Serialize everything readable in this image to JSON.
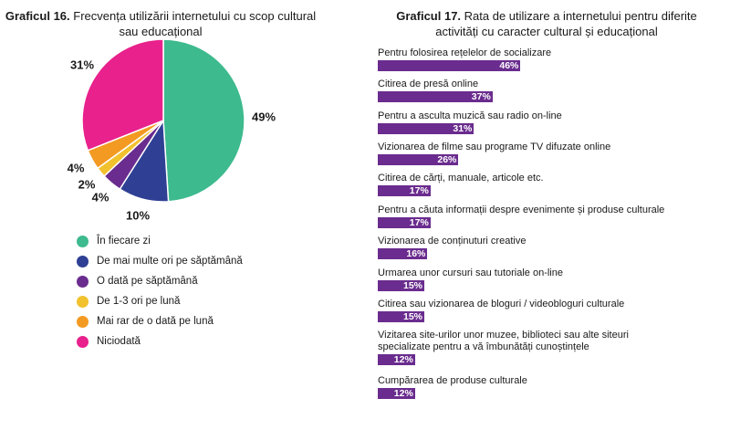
{
  "left_chart": {
    "title_bold": "Graficul 16.",
    "title_rest": " Frecvența utilizării internetului cu scop cultural",
    "title_line2": "sau educațional"
  },
  "right_chart": {
    "title_bold": "Graficul 17.",
    "title_rest": " Rata de utilizare a internetului pentru diferite",
    "title_line2": "activități cu caracter cultural și educațional"
  },
  "chart_data": [
    {
      "type": "pie",
      "title": "Graficul 16. Frecvența utilizării internetului cu scop cultural sau educațional",
      "labels": [
        "În fiecare zi",
        "De mai multe ori pe săptămână",
        "O dată pe săptămână",
        "De 1-3 ori pe lună",
        "Mai rar de o dată pe lună",
        "Niciodată"
      ],
      "values": [
        49,
        10,
        4,
        2,
        4,
        31
      ],
      "value_labels": [
        "49%",
        "10%",
        "4%",
        "2%",
        "4%",
        "31%"
      ],
      "colors": [
        "#3dba8e",
        "#2e3f94",
        "#6a2c8e",
        "#f2c12e",
        "#f39a22",
        "#e8218c"
      ],
      "legend": "bottom-left"
    },
    {
      "type": "bar",
      "orientation": "horizontal",
      "title": "Graficul 17. Rata de utilizare a internetului pentru diferite activități cu caracter cultural și educațional",
      "color": "#6a2c8e",
      "categories": [
        [
          "Pentru folosirea rețelelor de socializare"
        ],
        [
          "Citirea de presă online"
        ],
        [
          "Pentru a asculta muzică sau radio on-line"
        ],
        [
          "Vizionarea de filme sau programe TV difuzate online"
        ],
        [
          "Citirea de cărți, manuale, articole etc."
        ],
        [
          "Pentru a căuta informații despre evenimente și produse culturale"
        ],
        [
          "Vizionarea de conținuturi creative"
        ],
        [
          "Urmarea unor cursuri sau tutoriale on-line"
        ],
        [
          "Citirea sau vizionarea de bloguri / videobloguri culturale"
        ],
        [
          "Vizitarea site-urilor unor muzee, biblioteci sau alte siteuri",
          "specializate pentru a vă îmbunătăți cunoștințele"
        ],
        [
          "Cumpărarea de produse culturale"
        ]
      ],
      "values": [
        46,
        37,
        31,
        26,
        17,
        17,
        16,
        15,
        15,
        12,
        12
      ],
      "value_labels": [
        "46%",
        "37%",
        "31%",
        "26%",
        "17%",
        "17%",
        "16%",
        "15%",
        "15%",
        "12%",
        "12%"
      ]
    }
  ]
}
